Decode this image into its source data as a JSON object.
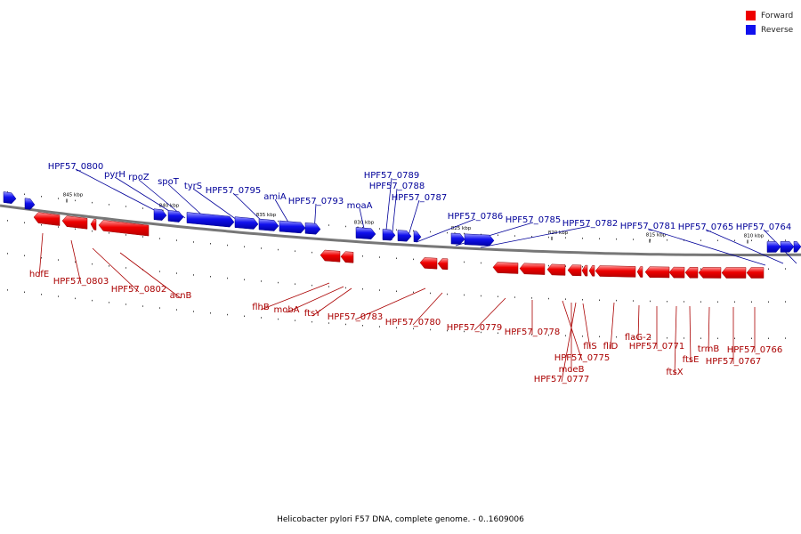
{
  "legend": [
    {
      "label": "Forward",
      "color": "#ee0000"
    },
    {
      "label": "Reverse",
      "color": "#1111ee"
    }
  ],
  "caption": "Helicobacter pylori F57 DNA, complete genome. - 0..1609006",
  "axis": {
    "ticks": [
      "845 kbp",
      "840 kbp",
      "835 kbp",
      "830 kbp",
      "825 kbp",
      "820 kbp",
      "815 kbp",
      "810 kbp"
    ]
  },
  "genes": {
    "reverse": [
      "HPF57_0800",
      "pyrH",
      "rpoZ",
      "spoT",
      "tyrS",
      "HPF57_0795",
      "amiA",
      "HPF57_0793",
      "moaA",
      "HPF57_0789",
      "HPF57_0788",
      "HPF57_0787",
      "HPF57_0786",
      "HPF57_0785",
      "HPF57_0782",
      "HPF57_0781",
      "HPF57_0765",
      "HPF57_0764"
    ],
    "forward": [
      "hofE",
      "HPF57_0803",
      "HPF57_0802",
      "acnB",
      "flhB",
      "mobA",
      "ftsY",
      "HPF57_0783",
      "HPF57_0780",
      "HPF57_0779",
      "HPF57_0778",
      "HPF57_0775",
      "moeB",
      "HPF57_0777",
      "fliS",
      "fliD",
      "flaG-2",
      "HPF57_0771",
      "ftsX",
      "ftsE",
      "trmB",
      "HPF57_0767",
      "HPF57_0766"
    ]
  },
  "colors": {
    "forward": "#ee0000",
    "reverse": "#1111ee",
    "backbone": "#777777",
    "label_forward": "#aa0000",
    "label_reverse": "#000099"
  }
}
